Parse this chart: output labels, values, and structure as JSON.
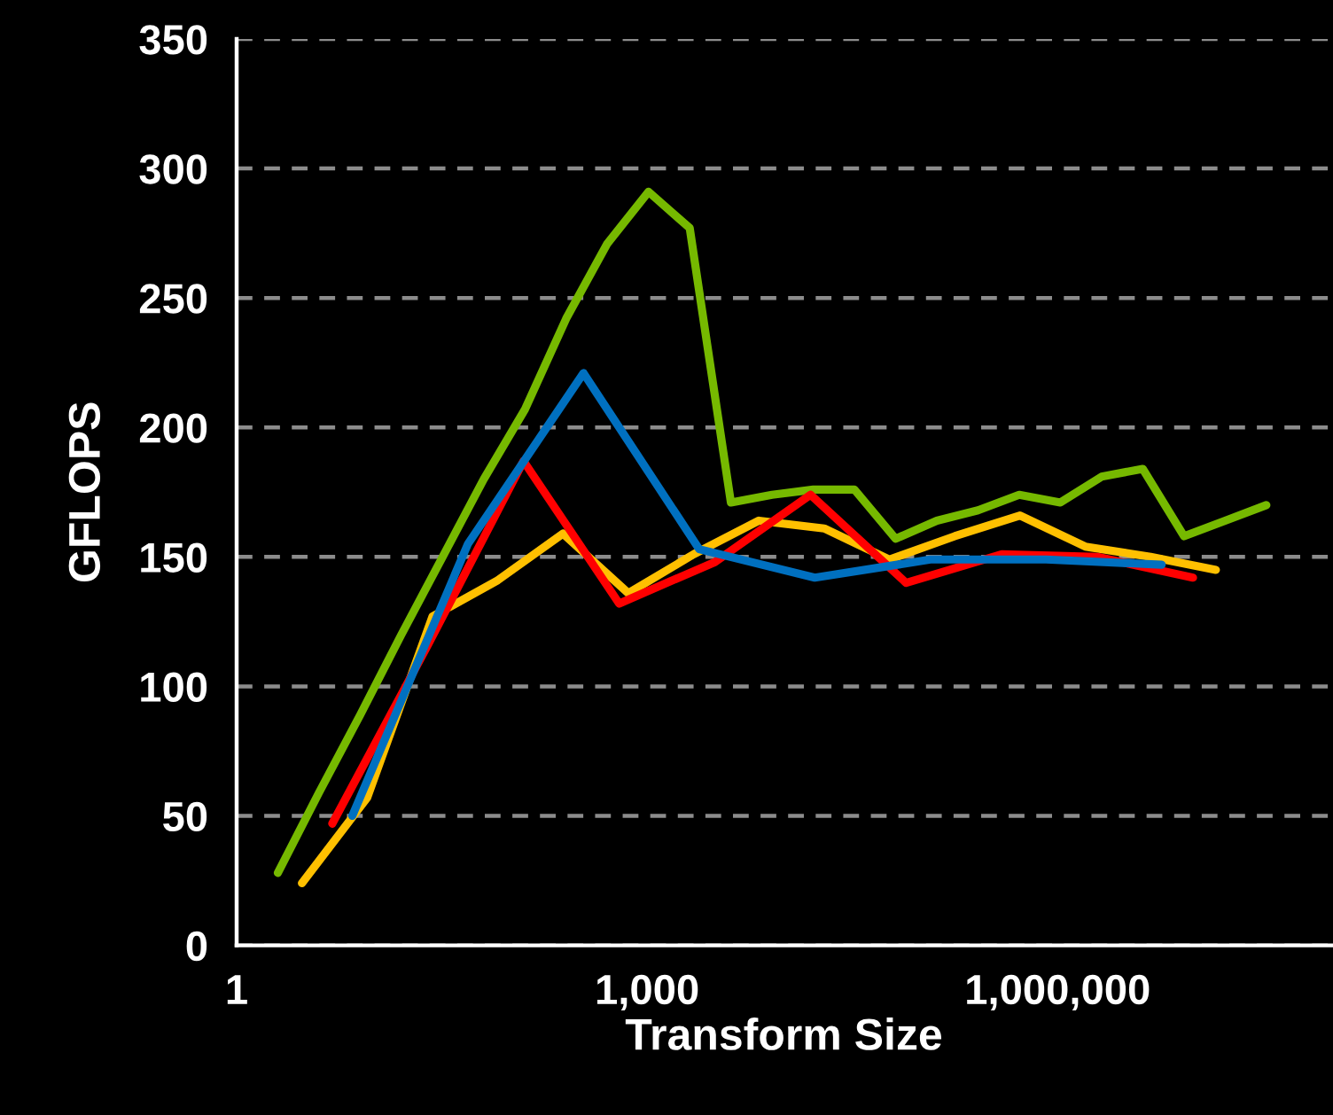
{
  "chart_data": {
    "type": "line",
    "xlabel": "Transform Size",
    "ylabel": "GFLOPS",
    "log": "x",
    "grid": "y",
    "line_style": "solid",
    "xlim": [
      1,
      100000000
    ],
    "xticks": [
      1,
      {
        "value": 1000,
        "label": "1,000"
      },
      {
        "value": 1000000,
        "label": "1,000,000"
      }
    ],
    "ylim": [
      0,
      350
    ],
    "yticks": [
      0,
      50,
      100,
      150,
      200,
      250,
      300,
      350
    ],
    "series": [
      {
        "color": "#76b900",
        "x": [
          2,
          4,
          8,
          16,
          32,
          64,
          128,
          256,
          512,
          1024,
          2048,
          4096,
          8192,
          16384,
          32768,
          65536,
          131072,
          262144,
          524288,
          1048576,
          2097152,
          4194304,
          8388608,
          16777216,
          33554432
        ],
        "values": [
          28,
          59,
          89,
          120,
          150,
          180,
          207,
          242,
          271,
          291,
          277,
          171,
          174,
          176,
          176,
          157,
          164,
          168,
          174,
          171,
          181,
          184,
          158,
          164,
          170
        ]
      },
      {
        "color": "#ffc000",
        "x": [
          3,
          9,
          27,
          81,
          243,
          729,
          2187,
          6561,
          19683,
          59049,
          177147,
          531441,
          1594323,
          4782969,
          14348907
        ],
        "values": [
          24,
          57,
          127,
          141,
          159,
          136,
          151,
          164,
          161,
          149,
          158,
          166,
          154,
          150,
          145
        ]
      },
      {
        "color": "#ff0000",
        "x": [
          5,
          25,
          125,
          625,
          3125,
          15625,
          78125,
          390625,
          1953125,
          9765625
        ],
        "values": [
          47,
          116,
          187,
          132,
          148,
          174,
          140,
          151,
          150,
          142
        ]
      },
      {
        "color": "#0070c0",
        "x": [
          7,
          49,
          343,
          2401,
          16807,
          117649,
          823543,
          5764801
        ],
        "values": [
          50,
          155,
          221,
          153,
          142,
          149,
          149,
          147
        ]
      }
    ]
  }
}
